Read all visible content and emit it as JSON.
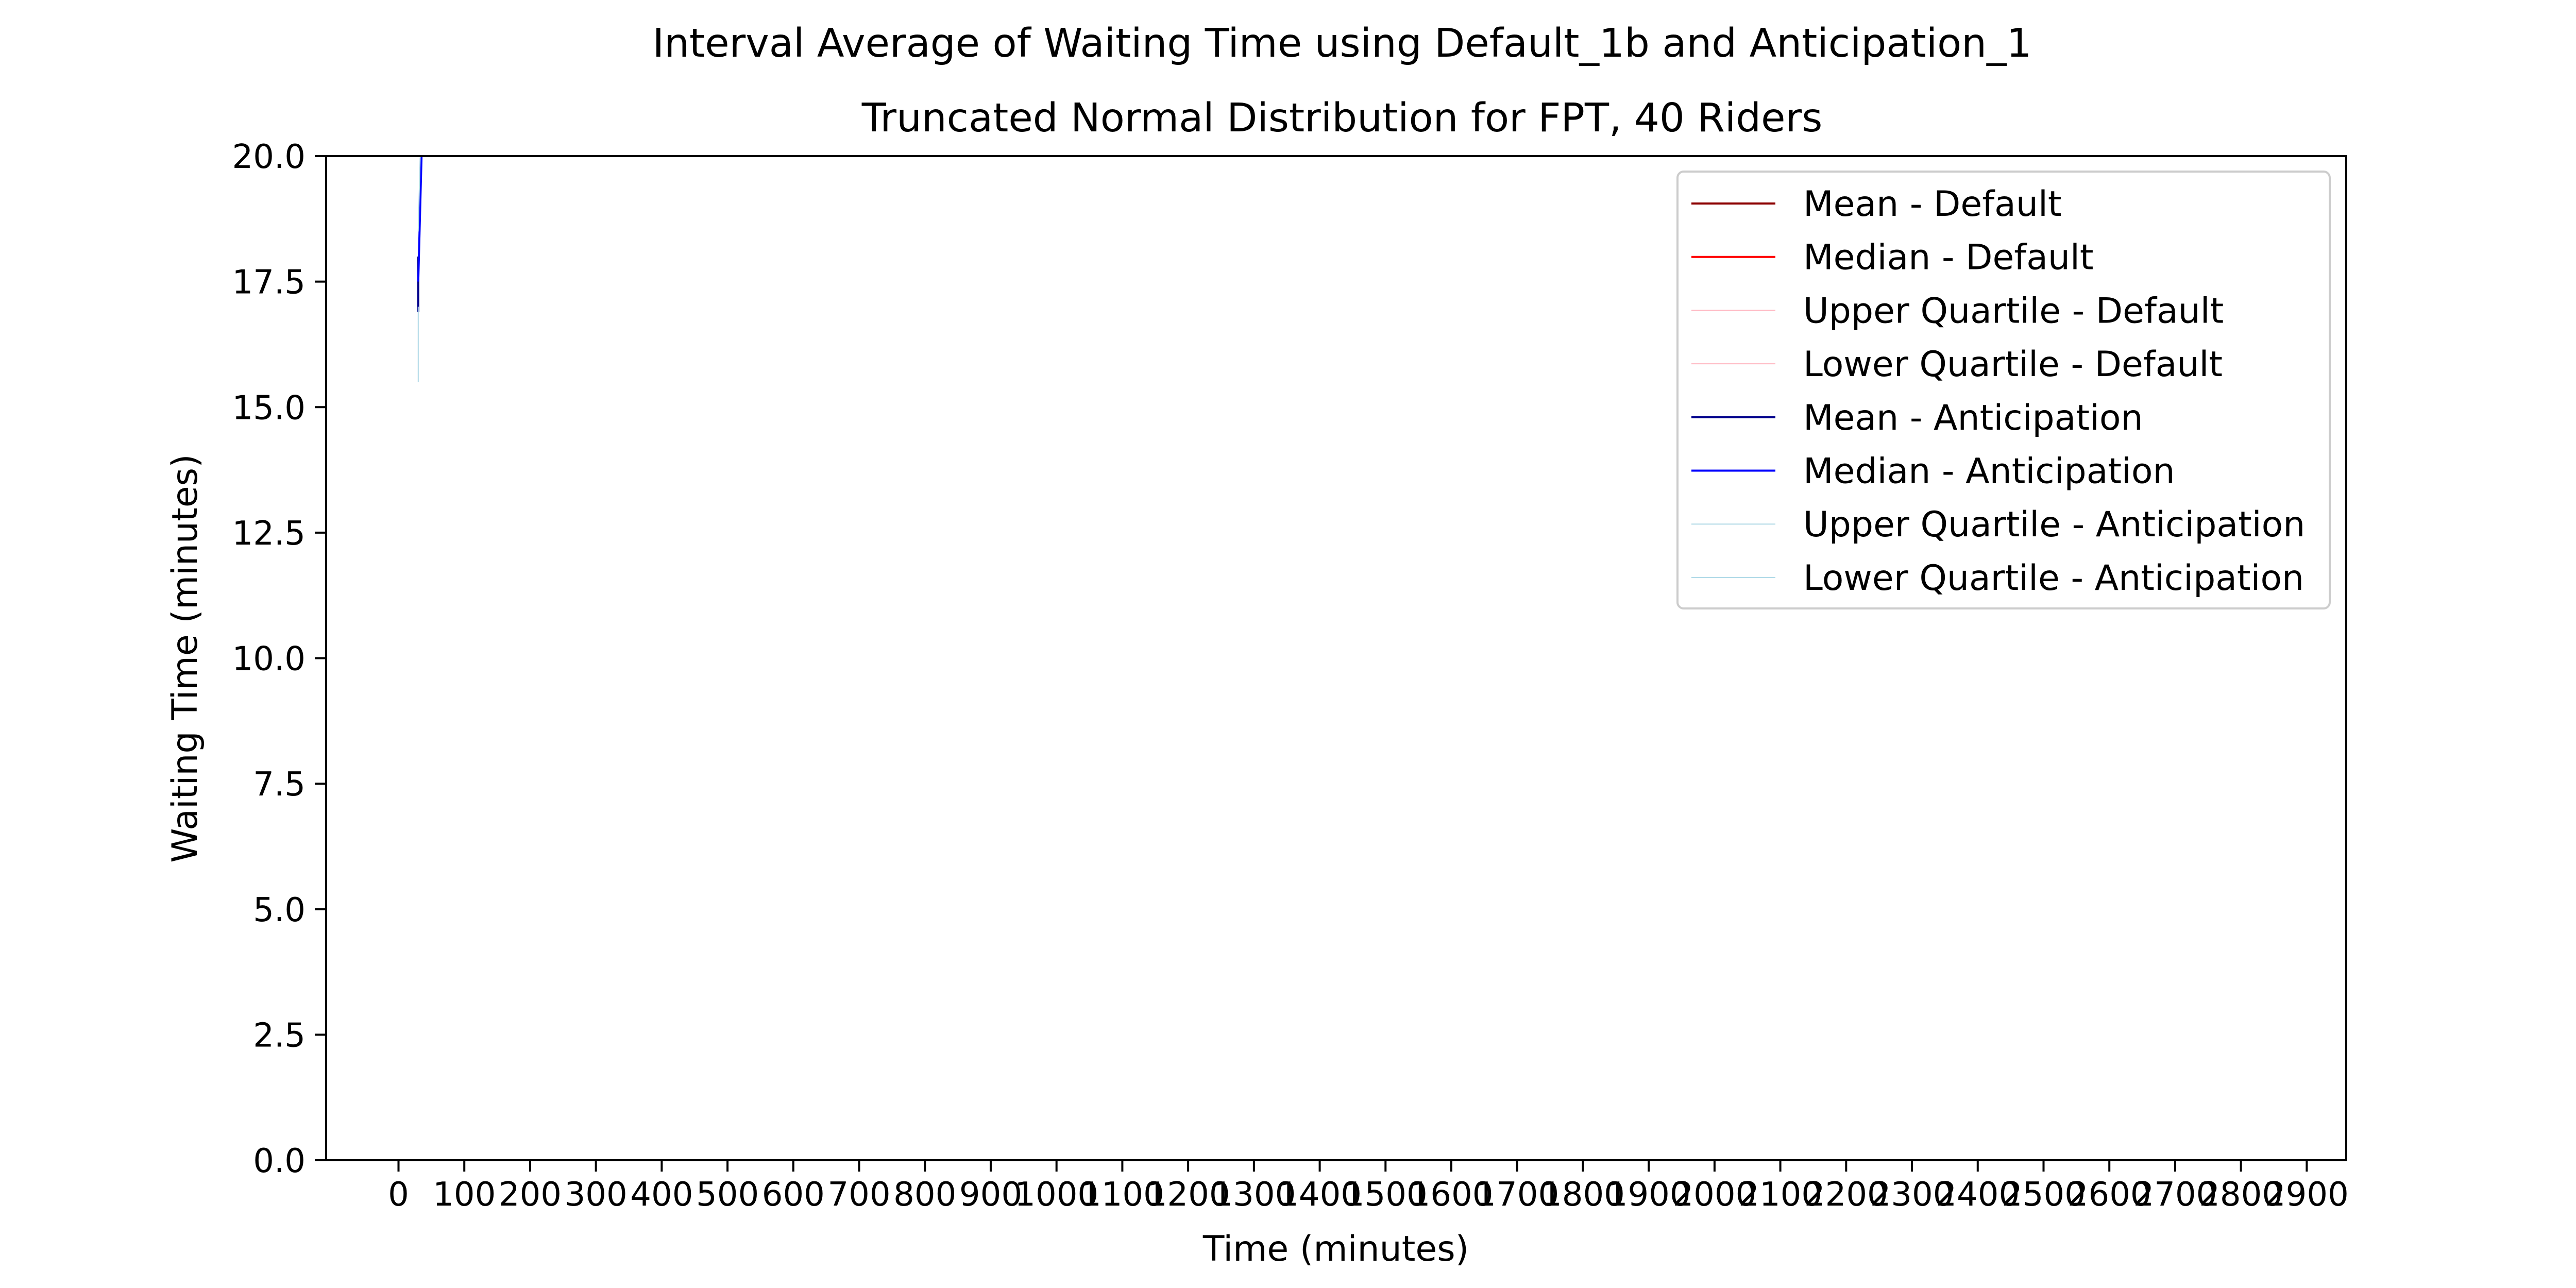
{
  "chart_data": {
    "type": "line",
    "title": "Interval Average of Waiting Time using Default_1b and Anticipation_1",
    "subtitle": "Truncated Normal Distribution for FPT, 40 Riders",
    "xlabel": "Time (minutes)",
    "ylabel": "Waiting Time (minutes)",
    "xlim": [
      -110,
      2960
    ],
    "ylim": [
      0,
      20
    ],
    "x_ticks": [
      0,
      100,
      200,
      300,
      400,
      500,
      600,
      700,
      800,
      900,
      1000,
      1100,
      1200,
      1300,
      1400,
      1500,
      1600,
      1700,
      1800,
      1900,
      2000,
      2100,
      2200,
      2300,
      2400,
      2500,
      2600,
      2700,
      2800,
      2900
    ],
    "x_tick_labels": [
      "0",
      "100",
      "200",
      "300",
      "400",
      "500",
      "600",
      "700",
      "800",
      "900",
      "1000",
      "1100",
      "1200",
      "1300",
      "1400",
      "1500",
      "1600",
      "1700",
      "1800",
      "1900",
      "2000",
      "2100",
      "2200",
      "2300",
      "2400",
      "2500",
      "2600",
      "2700",
      "2800",
      "2900"
    ],
    "y_ticks": [
      0.0,
      2.5,
      5.0,
      7.5,
      10.0,
      12.5,
      15.0,
      17.5,
      20.0
    ],
    "y_tick_labels": [
      "0.0",
      "2.5",
      "5.0",
      "7.5",
      "10.0",
      "12.5",
      "15.0",
      "17.5",
      "20.0"
    ],
    "grid": false,
    "legend_position": "top-right",
    "series": [
      {
        "name": "Mean - Default",
        "color": "#8b0000",
        "width": 4,
        "points": []
      },
      {
        "name": "Median - Default",
        "color": "#ff0000",
        "width": 4,
        "points": []
      },
      {
        "name": "Upper Quartile - Default",
        "color": "#ffb6c1",
        "width": 2,
        "points": []
      },
      {
        "name": "Lower Quartile - Default",
        "color": "#ffb6c1",
        "width": 2,
        "points": []
      },
      {
        "name": "Mean - Anticipation",
        "color": "#00008b",
        "width": 4,
        "points": [
          [
            30,
            16.9
          ],
          [
            30,
            18.0
          ]
        ]
      },
      {
        "name": "Median - Anticipation",
        "color": "#0000ff",
        "width": 4,
        "points": [
          [
            30,
            17.5
          ],
          [
            35,
            20.0
          ]
        ]
      },
      {
        "name": "Upper Quartile - Anticipation",
        "color": "#add8e6",
        "width": 2,
        "points": [
          [
            30,
            18.5
          ],
          [
            33,
            20.0
          ]
        ]
      },
      {
        "name": "Lower Quartile - Anticipation",
        "color": "#add8e6",
        "width": 2,
        "points": [
          [
            30,
            15.5
          ],
          [
            30,
            17.0
          ]
        ]
      }
    ]
  }
}
